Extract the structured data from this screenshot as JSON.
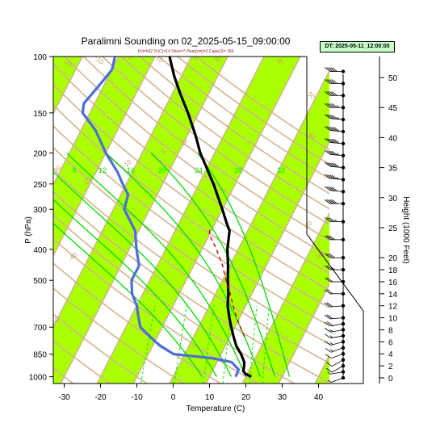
{
  "chart_data": {
    "type": "line",
    "title": "Paralimni Sounding on 02_2025-05-15_09:00:00",
    "subtitle": "Pct=932 Tc(C)=14 Shox=7 Pwat(cm)=2 Cape(J)= 396",
    "time_box": "DT: 2025-05-11_12:00:00",
    "xlabel": "Temperature (C)",
    "ylabel": "P (hPa)",
    "ylabel_right": "Height (1000 Feet)",
    "x_ticks": [
      -30,
      -20,
      -10,
      0,
      10,
      20,
      30,
      40
    ],
    "y_ticks": [
      100,
      150,
      200,
      250,
      300,
      400,
      500,
      700,
      850,
      1000
    ],
    "height_ticks": [
      0,
      2,
      4,
      6,
      8,
      10,
      12,
      14,
      16,
      18,
      20,
      25,
      30,
      35,
      40,
      45,
      50
    ],
    "xlim": [
      -33,
      43
    ],
    "ylim": [
      1050,
      100
    ],
    "skew_c_per_decade": 45,
    "isotherm_labels": [
      "-50",
      "-40",
      "-30",
      "-20",
      "-10",
      "0",
      "10",
      "20",
      "30",
      "40"
    ],
    "dry_adiabat_labels": [
      "-20",
      "-10",
      "0",
      "10",
      "20",
      "30",
      "40",
      "50",
      "60"
    ],
    "mixing_ratio_labels": [
      "8",
      "12",
      "16",
      "20",
      "24",
      "28",
      "32"
    ],
    "series": [
      {
        "name": "Temperature",
        "color": "#000000",
        "points": [
          [
            1000,
            21.5
          ],
          [
            980,
            19.5
          ],
          [
            960,
            18.5
          ],
          [
            925,
            18
          ],
          [
            900,
            17.5
          ],
          [
            850,
            15.5
          ],
          [
            800,
            13
          ],
          [
            750,
            11
          ],
          [
            700,
            9
          ],
          [
            650,
            7
          ],
          [
            600,
            5
          ],
          [
            550,
            3.5
          ],
          [
            500,
            1.5
          ],
          [
            450,
            -0.5
          ],
          [
            400,
            -3
          ],
          [
            350,
            -5
          ],
          [
            330,
            -7
          ],
          [
            300,
            -10
          ],
          [
            250,
            -16
          ],
          [
            200,
            -24
          ],
          [
            175,
            -28
          ],
          [
            150,
            -33
          ],
          [
            130,
            -38
          ],
          [
            115,
            -42
          ],
          [
            100,
            -46
          ]
        ]
      },
      {
        "name": "Dewpoint",
        "color": "#4b6fd2",
        "points": [
          [
            1000,
            17.2
          ],
          [
            950,
            17
          ],
          [
            900,
            14
          ],
          [
            875,
            8
          ],
          [
            850,
            -3
          ],
          [
            800,
            -8
          ],
          [
            750,
            -12
          ],
          [
            700,
            -16
          ],
          [
            650,
            -18
          ],
          [
            600,
            -20
          ],
          [
            550,
            -23
          ],
          [
            500,
            -25
          ],
          [
            450,
            -25
          ],
          [
            400,
            -28
          ],
          [
            350,
            -31
          ],
          [
            300,
            -37
          ],
          [
            270,
            -38
          ],
          [
            250,
            -41
          ],
          [
            230,
            -44
          ],
          [
            200,
            -50
          ],
          [
            170,
            -56
          ],
          [
            150,
            -62
          ],
          [
            140,
            -63
          ],
          [
            130,
            -62
          ],
          [
            120,
            -61
          ],
          [
            110,
            -60
          ],
          [
            100,
            -61
          ]
        ]
      },
      {
        "name": "Parcel",
        "color": "#cc0000",
        "points": [
          [
            750,
            14
          ],
          [
            700,
            11.5
          ],
          [
            650,
            9
          ],
          [
            600,
            6.5
          ],
          [
            550,
            4
          ],
          [
            500,
            1
          ],
          [
            450,
            -2
          ],
          [
            400,
            -6
          ],
          [
            360,
            -10
          ],
          [
            340,
            -11
          ]
        ]
      }
    ],
    "wind_barbs_kt": [
      {
        "h": 0,
        "spd": 5,
        "dir": 250
      },
      {
        "h": 1,
        "spd": 5,
        "dir": 260
      },
      {
        "h": 2,
        "spd": 10,
        "dir": 240
      },
      {
        "h": 3,
        "spd": 10,
        "dir": 240
      },
      {
        "h": 4,
        "spd": 10,
        "dir": 250
      },
      {
        "h": 5,
        "spd": 15,
        "dir": 250
      },
      {
        "h": 6,
        "spd": 15,
        "dir": 255
      },
      {
        "h": 7,
        "spd": 15,
        "dir": 260
      },
      {
        "h": 8,
        "spd": 15,
        "dir": 260
      },
      {
        "h": 9,
        "spd": 20,
        "dir": 260
      },
      {
        "h": 10,
        "spd": 20,
        "dir": 265
      },
      {
        "h": 12,
        "spd": 20,
        "dir": 265
      },
      {
        "h": 14,
        "spd": 20,
        "dir": 270
      },
      {
        "h": 16,
        "spd": 20,
        "dir": 270
      },
      {
        "h": 18,
        "spd": 25,
        "dir": 270
      },
      {
        "h": 20,
        "spd": 30,
        "dir": 270
      },
      {
        "h": 23,
        "spd": 30,
        "dir": 270
      },
      {
        "h": 26,
        "spd": 35,
        "dir": 270
      },
      {
        "h": 29,
        "spd": 40,
        "dir": 270
      },
      {
        "h": 31,
        "spd": 40,
        "dir": 275
      },
      {
        "h": 33,
        "spd": 45,
        "dir": 275
      },
      {
        "h": 35,
        "spd": 50,
        "dir": 275
      },
      {
        "h": 37,
        "spd": 45,
        "dir": 275
      },
      {
        "h": 39,
        "spd": 50,
        "dir": 275
      },
      {
        "h": 41,
        "spd": 50,
        "dir": 275
      },
      {
        "h": 43,
        "spd": 45,
        "dir": 275
      },
      {
        "h": 45,
        "spd": 45,
        "dir": 270
      },
      {
        "h": 47,
        "spd": 40,
        "dir": 270
      },
      {
        "h": 49,
        "spd": 40,
        "dir": 270
      },
      {
        "h": 51,
        "spd": 40,
        "dir": 270
      }
    ]
  },
  "colors": {
    "band": "#aaff00",
    "isotherm": "#d2b48c",
    "mixing_ratio": "#00ee00",
    "moist_adiabat": "#00dd00",
    "label": "#c8a070"
  }
}
